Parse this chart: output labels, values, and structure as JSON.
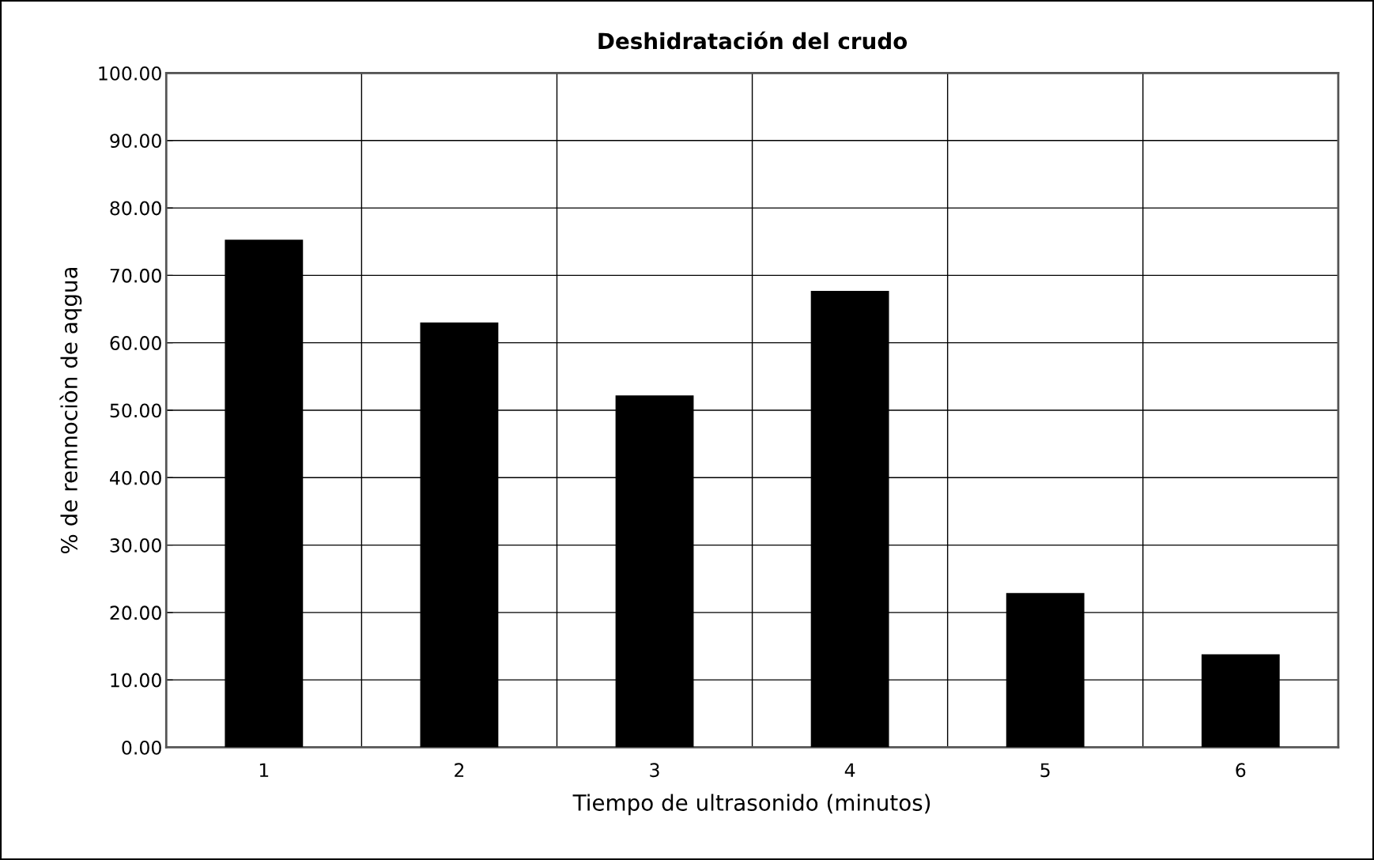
{
  "chart_data": {
    "type": "bar",
    "title": "Deshidratación del crudo",
    "xlabel": "Tiempo de ultrasonido (minutos)",
    "ylabel": "% de remnociòn de aqgua",
    "categories": [
      "1",
      "2",
      "3",
      "4",
      "5",
      "6"
    ],
    "values": [
      75.3,
      63.0,
      52.2,
      67.7,
      22.9,
      13.8
    ],
    "color": "#000000",
    "ylim": [
      0,
      100
    ],
    "yticks": [
      {
        "value": 0,
        "label": "0.00"
      },
      {
        "value": 10,
        "label": "10.00"
      },
      {
        "value": 20,
        "label": "20.00"
      },
      {
        "value": 30,
        "label": "30.00"
      },
      {
        "value": 40,
        "label": "40.00"
      },
      {
        "value": 50,
        "label": "50.00"
      },
      {
        "value": 60,
        "label": "60.00"
      },
      {
        "value": 70,
        "label": "70.00"
      },
      {
        "value": 80,
        "label": "80.00"
      },
      {
        "value": 90,
        "label": "90.00"
      },
      {
        "value": 100,
        "label": "100.00"
      }
    ],
    "grid": true,
    "legend": false
  }
}
